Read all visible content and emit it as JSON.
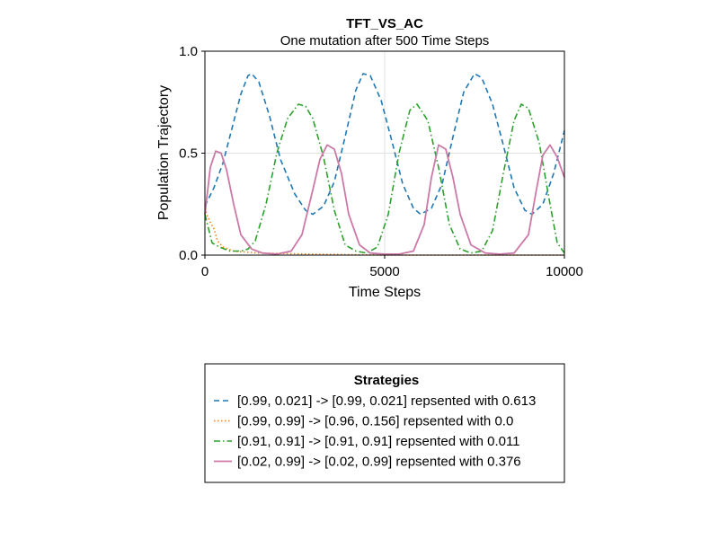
{
  "chart_data": {
    "type": "line",
    "title": "TFT_VS_AC",
    "subtitle": "One mutation after 500 Time Steps",
    "xlabel": "Time Steps",
    "ylabel": "Population Trajectory",
    "xlim": [
      0,
      10000
    ],
    "ylim": [
      0,
      1
    ],
    "xticks": [
      "0",
      "5000",
      "10000"
    ],
    "yticks": [
      "0.0",
      "0.5",
      "1.0"
    ],
    "grid": true,
    "legend": {
      "title": "Strategies",
      "placement": "below"
    },
    "series": [
      {
        "name": "[0.99, 0.021] -> [0.99, 0.021] repsented with 0.613",
        "color": "#1f77b4",
        "style": "dashed",
        "x": [
          0,
          250,
          500,
          750,
          1000,
          1200,
          1300,
          1500,
          1800,
          2100,
          2500,
          2800,
          3000,
          3300,
          3600,
          3900,
          4200,
          4400,
          4600,
          4900,
          5200,
          5500,
          5800,
          6000,
          6300,
          6600,
          6900,
          7200,
          7500,
          7700,
          8000,
          8300,
          8600,
          8900,
          9100,
          9400,
          9700,
          10000
        ],
        "y": [
          0.24,
          0.33,
          0.45,
          0.62,
          0.79,
          0.88,
          0.89,
          0.85,
          0.68,
          0.47,
          0.3,
          0.22,
          0.2,
          0.24,
          0.36,
          0.58,
          0.81,
          0.89,
          0.88,
          0.76,
          0.56,
          0.35,
          0.23,
          0.2,
          0.23,
          0.35,
          0.58,
          0.8,
          0.89,
          0.87,
          0.74,
          0.54,
          0.33,
          0.22,
          0.2,
          0.25,
          0.4,
          0.61
        ]
      },
      {
        "name": "[0.99, 0.99] -> [0.96, 0.156] repsented with 0.0",
        "color": "#ff7f0e",
        "style": "dotted",
        "x": [
          0,
          50,
          150,
          250,
          350,
          500,
          800,
          1500,
          3000,
          5000,
          7500,
          10000
        ],
        "y": [
          0.23,
          0.2,
          0.16,
          0.13,
          0.07,
          0.04,
          0.02,
          0.01,
          0.005,
          0.0,
          0.0,
          0.0
        ]
      },
      {
        "name": "[0.91, 0.91] -> [0.91, 0.91] repsented with 0.011",
        "color": "#2ca02c",
        "style": "dashdot",
        "x": [
          0,
          200,
          400,
          700,
          1000,
          1200,
          1400,
          1700,
          2000,
          2300,
          2600,
          2800,
          3000,
          3300,
          3600,
          3900,
          4200,
          4500,
          4800,
          5100,
          5400,
          5700,
          5900,
          6200,
          6500,
          6800,
          7100,
          7400,
          7700,
          8000,
          8300,
          8600,
          8800,
          9000,
          9300,
          9600,
          9800,
          10000
        ],
        "y": [
          0.2,
          0.06,
          0.04,
          0.02,
          0.02,
          0.03,
          0.07,
          0.25,
          0.5,
          0.67,
          0.74,
          0.73,
          0.67,
          0.48,
          0.22,
          0.05,
          0.02,
          0.01,
          0.04,
          0.2,
          0.5,
          0.71,
          0.74,
          0.66,
          0.43,
          0.15,
          0.03,
          0.01,
          0.02,
          0.12,
          0.4,
          0.66,
          0.74,
          0.72,
          0.55,
          0.25,
          0.06,
          0.01
        ]
      },
      {
        "name": "[0.02, 0.99] -> [0.02, 0.99] repsented with 0.376",
        "color": "#cc79a7",
        "style": "solid",
        "x": [
          0,
          150,
          300,
          450,
          600,
          800,
          1000,
          1300,
          1600,
          2000,
          2400,
          2700,
          3000,
          3200,
          3400,
          3600,
          3800,
          4000,
          4300,
          4600,
          5000,
          5400,
          5800,
          6100,
          6300,
          6500,
          6700,
          6900,
          7100,
          7400,
          7800,
          8200,
          8600,
          9000,
          9200,
          9400,
          9600,
          9800,
          10000
        ],
        "y": [
          0.2,
          0.43,
          0.51,
          0.5,
          0.42,
          0.25,
          0.1,
          0.03,
          0.01,
          0.005,
          0.02,
          0.1,
          0.32,
          0.47,
          0.54,
          0.52,
          0.4,
          0.2,
          0.05,
          0.01,
          0.005,
          0.005,
          0.02,
          0.15,
          0.38,
          0.54,
          0.52,
          0.38,
          0.2,
          0.05,
          0.01,
          0.005,
          0.01,
          0.1,
          0.3,
          0.49,
          0.54,
          0.48,
          0.38
        ]
      }
    ]
  }
}
